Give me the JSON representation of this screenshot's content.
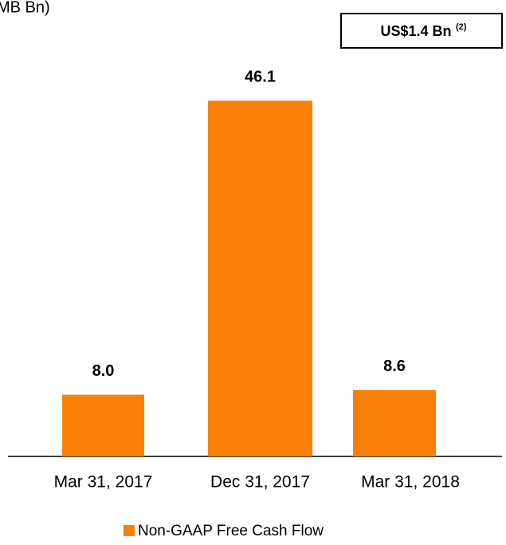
{
  "chart_data": {
    "type": "bar",
    "title": "MB Bn)",
    "annotation": "US$1.4 Bn",
    "annotation_note": "(2)",
    "categories": [
      "Mar 31, 2017",
      "Dec 31, 2017",
      "Mar 31, 2018"
    ],
    "series": [
      {
        "name": "Non-GAAP Free Cash Flow",
        "color": "#f88008",
        "values": [
          8.0,
          46.1,
          8.6
        ],
        "value_labels": [
          "8.0",
          "46.1",
          "8.6"
        ]
      }
    ]
  }
}
